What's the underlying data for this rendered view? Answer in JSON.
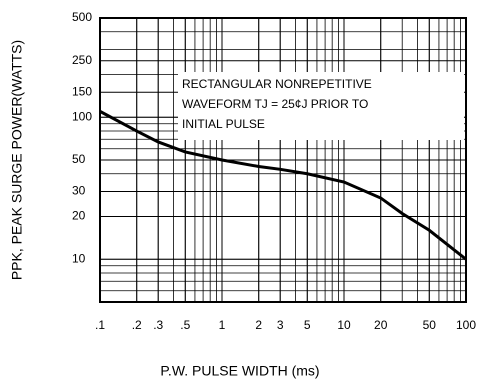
{
  "chart_data": {
    "type": "line",
    "xlabel": "P.W. PULSE WIDTH (ms)",
    "ylabel": "PPK, PEAK SURGE POWER(WATTS)",
    "annotation": [
      "RECTANGULAR NONREPETITIVE",
      "WAVEFORM TJ = 25¢J  PRIOR TO",
      "INITIAL PULSE"
    ],
    "x": [
      0.1,
      0.2,
      0.3,
      0.5,
      1,
      2,
      3,
      5,
      10,
      20,
      30,
      50,
      100
    ],
    "series": [
      {
        "color": "#000000",
        "values": [
          110,
          80,
          67,
          57,
          50,
          45,
          43,
          40,
          35,
          27,
          21,
          16,
          10
        ]
      }
    ],
    "xscale": "log",
    "yscale": "log",
    "xlim": [
      0.1,
      100
    ],
    "ylim": [
      5,
      500
    ],
    "xticks": [
      {
        "value": 0.1,
        "label": ".1"
      },
      {
        "value": 0.2,
        "label": ".2"
      },
      {
        "value": 0.3,
        "label": ".3"
      },
      {
        "value": 0.5,
        "label": ".5"
      },
      1,
      2,
      3,
      5,
      10,
      20,
      50,
      100
    ],
    "yticks": [
      10,
      20,
      30,
      50,
      100,
      150,
      250,
      500
    ],
    "grid": true
  }
}
